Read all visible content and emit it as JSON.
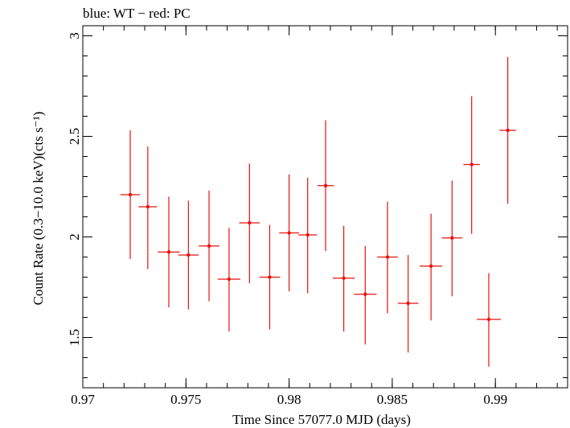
{
  "chart_data": {
    "type": "scatter",
    "title": "blue: WT − red: PC",
    "xlabel": "Time Since 57077.0 MJD (days)",
    "ylabel": "Count Rate (0.3−10.0 keV)(cts s⁻¹)",
    "xlim": [
      0.97,
      0.9935
    ],
    "ylim": [
      1.25,
      3.05
    ],
    "x_ticks": [
      {
        "value": 0.97,
        "label": "0.97"
      },
      {
        "value": 0.975,
        "label": "0.975"
      },
      {
        "value": 0.98,
        "label": "0.98"
      },
      {
        "value": 0.985,
        "label": "0.985"
      },
      {
        "value": 0.99,
        "label": "0.99"
      }
    ],
    "y_ticks": [
      {
        "value": 1.5,
        "label": "1.5"
      },
      {
        "value": 2.0,
        "label": "2"
      },
      {
        "value": 2.5,
        "label": "2.5"
      },
      {
        "value": 3.0,
        "label": "3"
      }
    ],
    "x_minor_step": 0.001,
    "y_minor_step": 0.1,
    "grid": false,
    "series": [
      {
        "color": "#e8120c",
        "points": [
          {
            "x": 0.9723,
            "y": 2.21,
            "xerr": 0.00048,
            "ylo": 1.89,
            "yhi": 2.53
          },
          {
            "x": 0.97315,
            "y": 2.15,
            "xerr": 0.00045,
            "ylo": 1.84,
            "yhi": 2.45
          },
          {
            "x": 0.97417,
            "y": 1.925,
            "xerr": 0.00053,
            "ylo": 1.65,
            "yhi": 2.2
          },
          {
            "x": 0.97512,
            "y": 1.91,
            "xerr": 0.0005,
            "ylo": 1.64,
            "yhi": 2.18
          },
          {
            "x": 0.97612,
            "y": 1.955,
            "xerr": 0.0005,
            "ylo": 1.68,
            "yhi": 2.23
          },
          {
            "x": 0.97709,
            "y": 1.79,
            "xerr": 0.00055,
            "ylo": 1.53,
            "yhi": 2.045
          },
          {
            "x": 0.97808,
            "y": 2.07,
            "xerr": 0.0005,
            "ylo": 1.77,
            "yhi": 2.365
          },
          {
            "x": 0.97906,
            "y": 1.8,
            "xerr": 0.0005,
            "ylo": 1.54,
            "yhi": 2.06
          },
          {
            "x": 0.98,
            "y": 2.02,
            "xerr": 0.00048,
            "ylo": 1.73,
            "yhi": 2.31
          },
          {
            "x": 0.9809,
            "y": 2.01,
            "xerr": 0.00045,
            "ylo": 1.72,
            "yhi": 2.295
          },
          {
            "x": 0.98177,
            "y": 2.255,
            "xerr": 0.0004,
            "ylo": 1.93,
            "yhi": 2.58
          },
          {
            "x": 0.98265,
            "y": 1.795,
            "xerr": 0.00053,
            "ylo": 1.53,
            "yhi": 2.055
          },
          {
            "x": 0.98369,
            "y": 1.715,
            "xerr": 0.00055,
            "ylo": 1.465,
            "yhi": 1.955
          },
          {
            "x": 0.98477,
            "y": 1.9,
            "xerr": 0.0005,
            "ylo": 1.62,
            "yhi": 2.175
          },
          {
            "x": 0.98577,
            "y": 1.67,
            "xerr": 0.0005,
            "ylo": 1.425,
            "yhi": 1.91
          },
          {
            "x": 0.98688,
            "y": 1.855,
            "xerr": 0.00055,
            "ylo": 1.585,
            "yhi": 2.115
          },
          {
            "x": 0.9879,
            "y": 1.995,
            "xerr": 0.0005,
            "ylo": 1.705,
            "yhi": 2.28
          },
          {
            "x": 0.98885,
            "y": 2.36,
            "xerr": 0.0004,
            "ylo": 2.015,
            "yhi": 2.7
          },
          {
            "x": 0.98968,
            "y": 1.59,
            "xerr": 0.00058,
            "ylo": 1.355,
            "yhi": 1.82
          },
          {
            "x": 0.9906,
            "y": 2.53,
            "xerr": 0.0004,
            "ylo": 2.165,
            "yhi": 2.895
          }
        ]
      }
    ]
  }
}
